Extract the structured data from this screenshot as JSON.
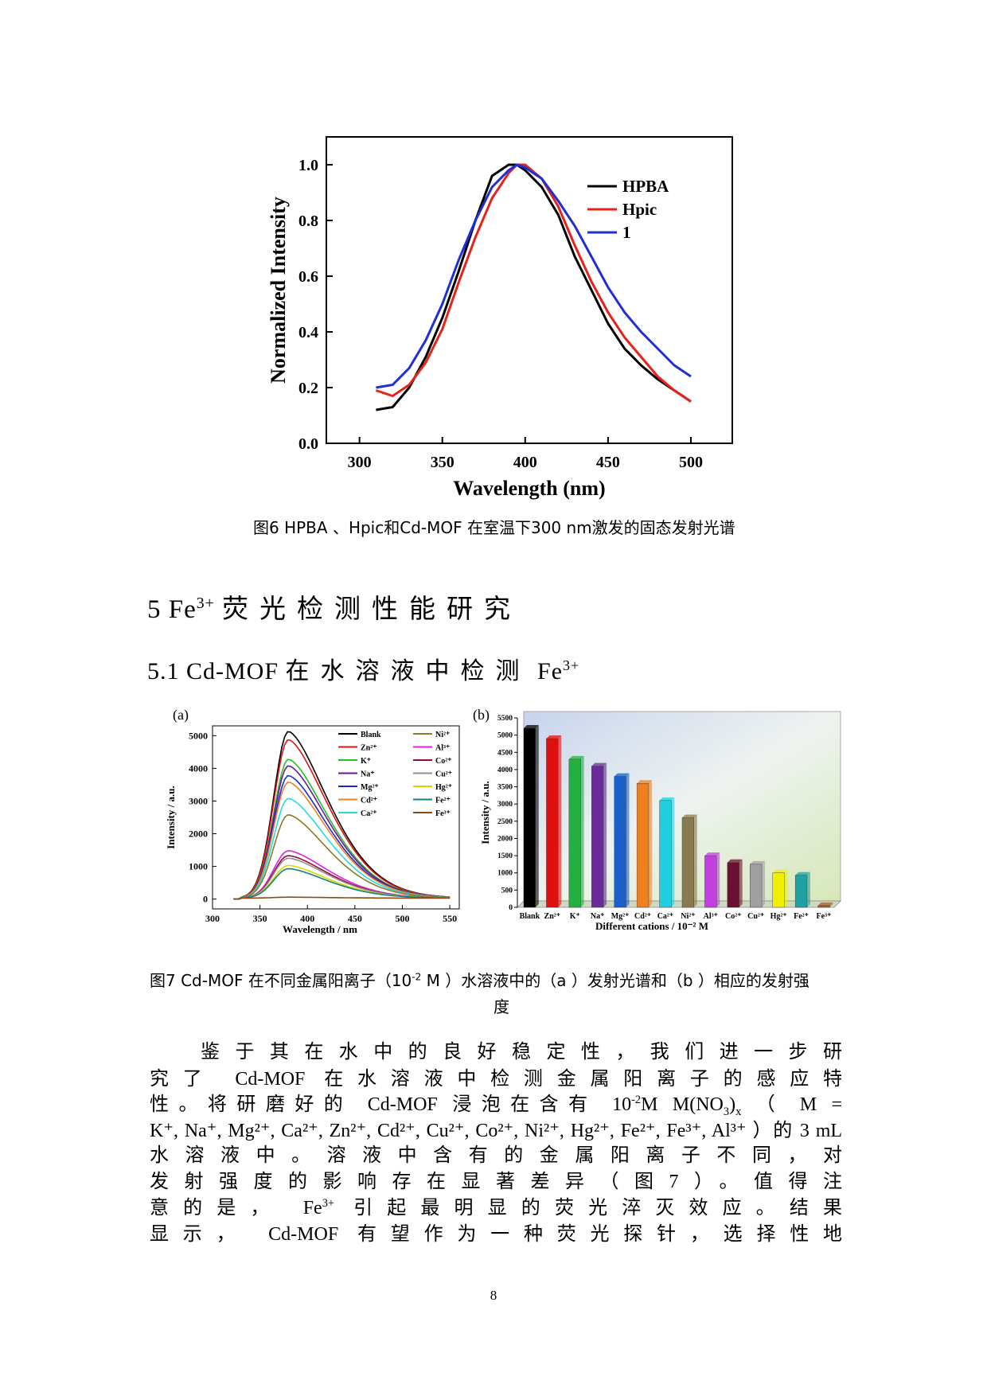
{
  "figure6": {
    "caption": "图6 HPBA 、Hpic和Cd-MOF 在室温下300 nm激发的固态发射光谱",
    "chart_data": {
      "type": "line",
      "xlabel": "Wavelength (nm)",
      "ylabel": "Normalized Intensity",
      "xlim": [
        280,
        525
      ],
      "ylim": [
        0,
        1.1
      ],
      "x_ticks": [
        "300",
        "350",
        "400",
        "450",
        "500"
      ],
      "y_ticks": [
        "0.0",
        "0.2",
        "0.4",
        "0.6",
        "0.8",
        "1.0"
      ],
      "legend_position": "top-right",
      "series": [
        {
          "name": "HPBA",
          "color": "#000000",
          "x": [
            310,
            320,
            330,
            340,
            350,
            360,
            370,
            380,
            390,
            395,
            400,
            410,
            420,
            430,
            440,
            450,
            460,
            470,
            480,
            490,
            500
          ],
          "y": [
            0.12,
            0.13,
            0.2,
            0.31,
            0.45,
            0.62,
            0.8,
            0.96,
            1.0,
            1.0,
            0.98,
            0.92,
            0.82,
            0.67,
            0.55,
            0.43,
            0.34,
            0.28,
            0.23,
            0.19,
            0.15
          ]
        },
        {
          "name": "Hpic",
          "color": "#e8211d",
          "x": [
            310,
            320,
            330,
            340,
            350,
            360,
            370,
            380,
            390,
            395,
            400,
            410,
            420,
            430,
            440,
            450,
            460,
            470,
            480,
            490,
            500
          ],
          "y": [
            0.19,
            0.17,
            0.21,
            0.29,
            0.41,
            0.58,
            0.74,
            0.88,
            0.97,
            1.0,
            1.0,
            0.95,
            0.85,
            0.71,
            0.58,
            0.47,
            0.38,
            0.31,
            0.24,
            0.19,
            0.15
          ]
        },
        {
          "name": "1",
          "color": "#1f2fd8",
          "x": [
            310,
            320,
            330,
            340,
            350,
            360,
            370,
            380,
            390,
            395,
            400,
            410,
            420,
            430,
            440,
            450,
            460,
            470,
            480,
            490,
            500
          ],
          "y": [
            0.2,
            0.21,
            0.27,
            0.37,
            0.5,
            0.66,
            0.8,
            0.92,
            0.98,
            1.0,
            0.99,
            0.95,
            0.87,
            0.78,
            0.67,
            0.56,
            0.47,
            0.4,
            0.34,
            0.28,
            0.24
          ]
        }
      ]
    }
  },
  "section5": {
    "number": "5",
    "ion_base": "Fe",
    "ion_charge": "3+",
    "title_cn": "荧光检测性能研究"
  },
  "section51": {
    "number": "5.1",
    "material": "Cd-MOF",
    "title_cn": "在水溶液中检测",
    "ion_base": "Fe",
    "ion_charge": "3+"
  },
  "figure7": {
    "panel_a_label": "(a)",
    "panel_b_label": "(b)",
    "caption_line1_pre": "图7 Cd-MOF  在不同金属阳离子（10",
    "caption_exp": "-2",
    "caption_line1_post": " M ）水溶液中的（a ）发射光谱和（b ）相应的发射强",
    "caption_line2": "度",
    "chart_data": [
      {
        "type": "line",
        "panel": "a",
        "xlabel": "Wavelength / nm",
        "ylabel": "Intensity / a.u.",
        "xlim": [
          300,
          560
        ],
        "ylim": [
          -300,
          5300
        ],
        "x_ticks": [
          "300",
          "350",
          "400",
          "450",
          "500",
          "550"
        ],
        "y_ticks": [
          "0",
          "1000",
          "2000",
          "3000",
          "4000",
          "5000"
        ],
        "peak_wavelength": 380,
        "legend_position": "top-right",
        "series": [
          {
            "name": "Blank",
            "color": "#000000",
            "peak": 5100
          },
          {
            "name": "Zn2+",
            "color": "#e01010",
            "peak": 4850
          },
          {
            "name": "K+",
            "color": "#22c022",
            "peak": 4250
          },
          {
            "name": "Na+",
            "color": "#6a1a9a",
            "peak": 4050
          },
          {
            "name": "Mg2+",
            "color": "#1a2ac8",
            "peak": 3750
          },
          {
            "name": "Cd2+",
            "color": "#ee8020",
            "peak": 3550
          },
          {
            "name": "Ca2+",
            "color": "#20dddd",
            "peak": 3050
          },
          {
            "name": "Ni2+",
            "color": "#8a7a2a",
            "peak": 2550
          },
          {
            "name": "Al3+",
            "color": "#e020e0",
            "peak": 1450
          },
          {
            "name": "Co2+",
            "color": "#8a1030",
            "peak": 1300
          },
          {
            "name": "Cu2+",
            "color": "#909090",
            "peak": 1220
          },
          {
            "name": "Hg2+",
            "color": "#d8d800",
            "peak": 1000
          },
          {
            "name": "Fe2+",
            "color": "#108080",
            "peak": 900
          },
          {
            "name": "Fe3+",
            "color": "#8a4a10",
            "peak": 30
          }
        ]
      },
      {
        "type": "bar",
        "panel": "b",
        "xlabel": "Different cations / 10⁻² M",
        "ylabel": "Intensity / a.u.",
        "ylim": [
          0,
          5500
        ],
        "y_ticks": [
          "0",
          "500",
          "1000",
          "1500",
          "2000",
          "2500",
          "3000",
          "3500",
          "4000",
          "4500",
          "5000",
          "5500"
        ],
        "categories": [
          "Blank",
          "Zn²⁺",
          "K⁺",
          "Na⁺",
          "Mg²⁺",
          "Cd²⁺",
          "Ca²⁺",
          "Ni²⁺",
          "Al³⁺",
          "Co²⁺",
          "Cu²⁺",
          "Hg²⁺",
          "Fe²⁺",
          "Fe³⁺"
        ],
        "values": [
          5200,
          4900,
          4300,
          4100,
          3800,
          3600,
          3100,
          2600,
          1500,
          1300,
          1250,
          1000,
          930,
          50
        ],
        "colors": [
          "#000000",
          "#e01010",
          "#22b040",
          "#6a2a9a",
          "#1a60c8",
          "#ee8020",
          "#20d0e0",
          "#8a7a50",
          "#c040e0",
          "#6a1030",
          "#a0a0a0",
          "#f0f000",
          "#20a0a0",
          "#a06030"
        ]
      }
    ]
  },
  "paragraph": {
    "l1": "鉴于其在水中的良好稳定性，我们进一步研",
    "l2a": "究了",
    "l2b": "Cd-MOF",
    "l2c": "在水溶液中检测金属阳离子的感应特",
    "l3a": "性。将研磨好的",
    "l3b": "Cd-MOF",
    "l3c": "浸泡在含有",
    "l3d": "10",
    "l3e": "-2",
    "l3f": "M M(NO",
    "l3g": "3",
    "l3h": ")",
    "l3i": "x",
    "l3j": "（",
    "l3k": "M =",
    "l4_ions": "K⁺, Na⁺, Mg²⁺, Ca²⁺, Zn²⁺, Cd²⁺, Cu²⁺, Co²⁺, Ni²⁺, Hg²⁺, Fe²⁺, Fe³⁺, Al³⁺",
    "l4b": "）的",
    "l4c": "3 mL",
    "l5": "水溶液中。溶液中含有的金属阳离子不同，对",
    "l6": "发射强度的影响存在显著差异（图7）。值得注",
    "l7a": "意的是，",
    "l7b": "Fe",
    "l7c": "3+",
    "l7d": "引起最明显的荧光淬灭效应。结果",
    "l8a": "显示，",
    "l8b": "Cd-MOF",
    "l8c": "有望作为一种荧光探针，选择性地"
  },
  "page_number": "8"
}
